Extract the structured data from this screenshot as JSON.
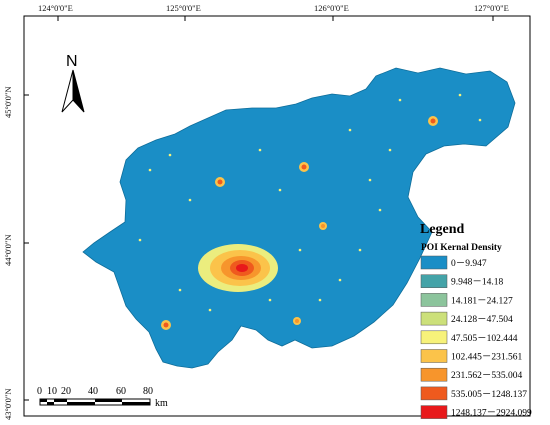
{
  "map": {
    "grid_labels": {
      "top": [
        "124°0'0\"E",
        "125°0'0\"E",
        "126°0'0\"E",
        "127°0'0\"E"
      ],
      "left": [
        "45°0'0\"N",
        "44°0'0\"N",
        "43°0'0\"N"
      ]
    },
    "north_arrow": {
      "label": "N"
    },
    "legend": {
      "title": "Legend",
      "subtitle": "POI Kernal Density",
      "classes": [
        {
          "label": "0－9.947",
          "color": "#1a8ec6"
        },
        {
          "label": "9.948－14.18",
          "color": "#44a3a8"
        },
        {
          "label": "14.181－24.127",
          "color": "#8cc49c"
        },
        {
          "label": "24.128－47.504",
          "color": "#cce07a"
        },
        {
          "label": "47.505－102.444",
          "color": "#f7f27a"
        },
        {
          "label": "102.445－231.561",
          "color": "#fbc34a"
        },
        {
          "label": "231.562－535.004",
          "color": "#f7952c"
        },
        {
          "label": "535.005－1248.137",
          "color": "#ef5a1e"
        },
        {
          "label": "1248.137－2924.099",
          "color": "#e8191b"
        }
      ]
    },
    "scale_bar": {
      "labels": [
        "0",
        "10",
        "20",
        "40",
        "60",
        "80"
      ],
      "unit": "km"
    },
    "colors": {
      "region": "#1a8ec6",
      "outline": "#0e6d9a"
    }
  }
}
